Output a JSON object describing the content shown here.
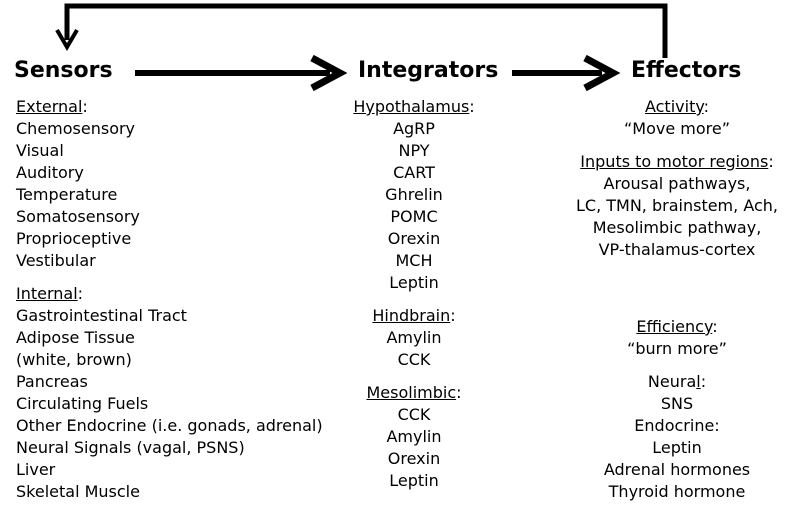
{
  "headings": {
    "sensors": "Sensors",
    "integrators": "Integrators",
    "effectors": "Effectors"
  },
  "sensors": {
    "external": {
      "title": "External",
      "items": [
        "Chemosensory",
        "Visual",
        "Auditory",
        "Temperature",
        "Somatosensory",
        "Proprioceptive",
        "Vestibular"
      ]
    },
    "internal": {
      "title": "Internal",
      "items": [
        "Gastrointestinal Tract",
        "Adipose Tissue",
        "(white, brown)",
        "Pancreas",
        "Circulating Fuels",
        "Other Endocrine (i.e. gonads, adrenal)",
        "Neural Signals (vagal, PSNS)",
        "Liver",
        "Skeletal Muscle"
      ]
    }
  },
  "integrators": {
    "hypothalamus": {
      "title": "Hypothalamus",
      "items": [
        "AgRP",
        "NPY",
        "CART",
        "Ghrelin",
        "POMC",
        "Orexin",
        "MCH",
        "Leptin"
      ]
    },
    "hindbrain": {
      "title": "Hindbrain",
      "items": [
        "Amylin",
        "CCK"
      ]
    },
    "mesolimbic": {
      "title": "Mesolimbic",
      "items": [
        "CCK",
        "Amylin",
        "Orexin",
        "Leptin"
      ]
    }
  },
  "effectors": {
    "activity": {
      "title": "Activity",
      "subtitle": "“Move more”"
    },
    "motor_inputs": {
      "title": "Inputs to motor regions",
      "items": [
        "Arousal pathways,",
        "LC, TMN, brainstem, Ach,",
        "Mesolimbic pathway,",
        "VP-thalamus-cortex"
      ]
    },
    "efficiency": {
      "title": "Efficiency",
      "subtitle": "“burn more”"
    },
    "neural": {
      "title_prefix": "Neura",
      "title_underlined": "l",
      "title_suffix": ":",
      "items": [
        "SNS"
      ]
    },
    "endocrine": {
      "title": "Endocrine:",
      "items": [
        "Leptin",
        "Adrenal hormones",
        "Thyroid hormone"
      ]
    }
  },
  "colon": ":"
}
